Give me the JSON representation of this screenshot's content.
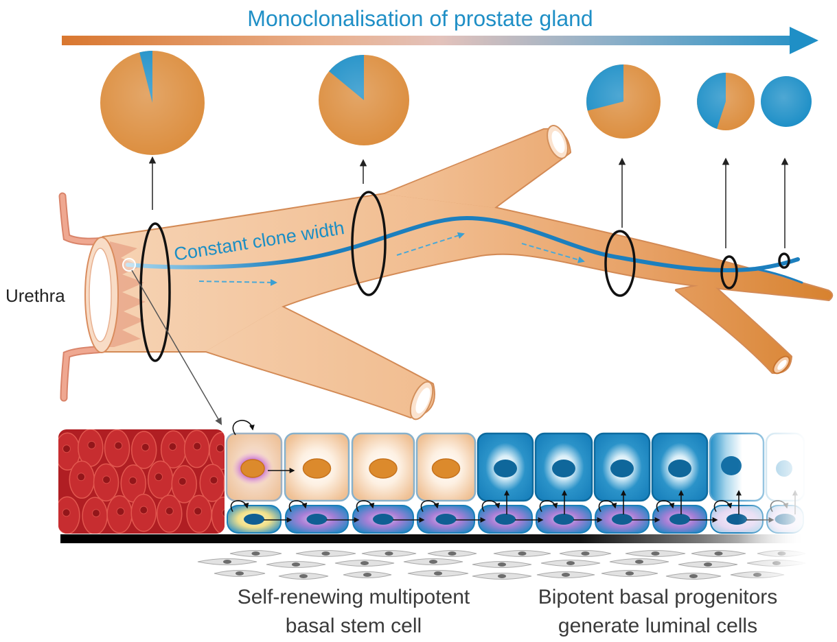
{
  "title": "Monoclonalisation of prostate gland",
  "labels": {
    "urethra": "Urethra",
    "clone_width": "Constant clone width"
  },
  "captions": {
    "stem_line1": "Self-renewing multipotent",
    "stem_line2": "basal stem cell",
    "progenitor_line1": "Bipotent basal progenitors",
    "progenitor_line2": "generate luminal cells"
  },
  "colors": {
    "orange": "#dc8e3f",
    "blue": "#1d8fc7",
    "title": "#1f8fc6",
    "clone_label": "#1b8ec4"
  },
  "clone_fractions": [
    0.04,
    0.14,
    0.29,
    0.45,
    1.0
  ]
}
